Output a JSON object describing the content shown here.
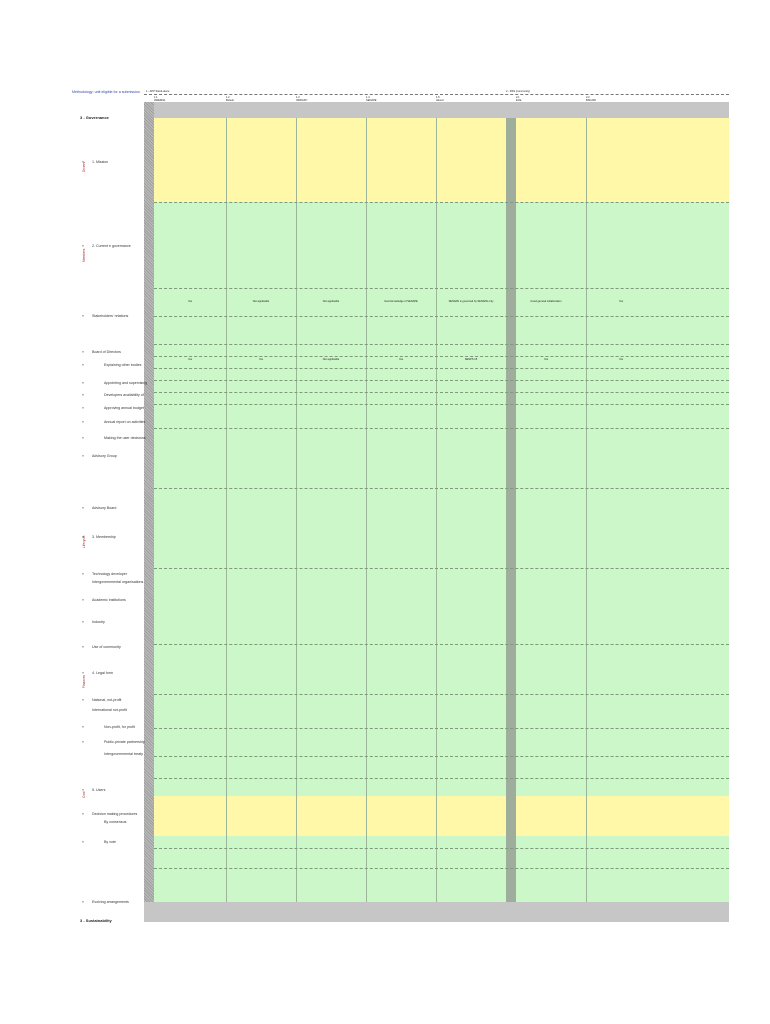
{
  "top_link": "Methodology: unit eligible for a submission",
  "headers": {
    "group_left": "1 - APP Stand-alone",
    "group_right": "2 - RSS (community)",
    "columns": [
      {
        "code": "1.1",
        "name": "AWERNA"
      },
      {
        "code": "1.2",
        "name": "Bulsuit"
      },
      {
        "code": "1.3",
        "name": "INFRAPC"
      },
      {
        "code": "1.4",
        "name": "SENAPE"
      },
      {
        "code": "1.5",
        "name": "Aleurd"
      },
      {
        "code": "2.1",
        "name": "ECE"
      },
      {
        "code": "2.2",
        "name": "BSN-RD"
      }
    ]
  },
  "sections": {
    "governance": "3 - Governance",
    "sustainability": "3 - Sustainability"
  },
  "side_bands": [
    {
      "text": "Drivers"
    },
    {
      "text": "Members"
    },
    {
      "text": "Lifecycle"
    },
    {
      "text": "Finances"
    },
    {
      "text": "Cost"
    }
  ],
  "row_labels": {
    "r1": "1. Mission",
    "r2": "2. Current e governance",
    "r3": "Stakeholders' relations",
    "r4": "Board of Directors",
    "r5": "Explaining other bodies",
    "r6": "Appointing and supervising",
    "r7": "Developers availability of",
    "r8": "Approving annual budget",
    "r9": "Annual report on activities",
    "r10": "Making the user decisions",
    "r11": "Advisory Group",
    "r12": "Advisory Board",
    "r13": "3. Membership",
    "r14": "Technology developer",
    "r15": "Intergovernmental organisations",
    "r16": "Academic institutions",
    "r17": "Industry",
    "r18": "Use of community",
    "r19": "4. Legal form",
    "r20": "National, not-profit",
    "r21": "International not-profit",
    "r22": "Non-profit, for profit",
    "r23": "Public-private partnership",
    "r24": "Intergovernmental treaty",
    "r25": "5. Users",
    "r26": "Decision making procedures",
    "r27": "By consensus",
    "r28": "By vote",
    "r29": "Evolving arrangements"
  },
  "row_cells": {
    "short": [
      "Yes",
      "Yes",
      "Not applicable",
      "Yes",
      "SENPS 15",
      "Yes",
      "Yes"
    ],
    "stake": [
      "Yes",
      "Not applicable",
      "Not applicable",
      "Good knowledge of SENAPE",
      "SENAPE is governed by SENAPE only",
      "Good general collaboration",
      "Yes"
    ]
  },
  "colors": {
    "yellow": "#fff8a8",
    "green": "#cbf7c9",
    "grey": "#c6c6c6"
  }
}
